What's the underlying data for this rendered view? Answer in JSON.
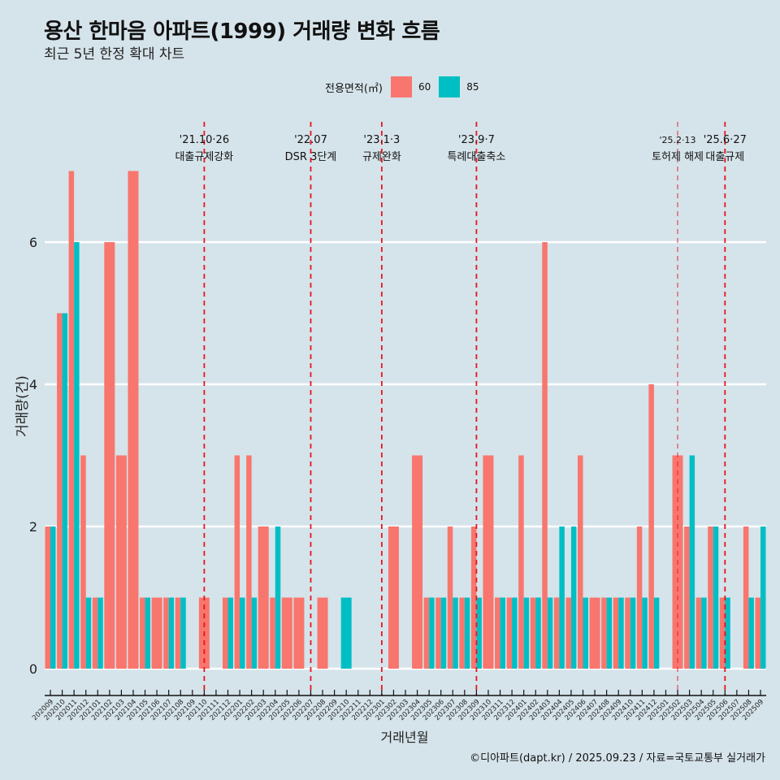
{
  "chart_data": {
    "type": "bar",
    "title": "용산 한마음 아파트(1999) 거래량 변화 흐름",
    "subtitle": "최근 5년 한정 확대 차트",
    "xlabel": "거래년월",
    "ylabel": "거래량(건)",
    "ylim": [
      0,
      7
    ],
    "yticks": [
      0,
      2,
      4,
      6
    ],
    "grid": "horizontal",
    "legend": {
      "title": "전용면적(㎡)",
      "position": "top",
      "entries": [
        {
          "name": "60",
          "color": "#f8766d"
        },
        {
          "name": "85",
          "color": "#00bfc4"
        }
      ]
    },
    "categories": [
      "202009",
      "202010",
      "202011",
      "202012",
      "202101",
      "202102",
      "202103",
      "202104",
      "202105",
      "202106",
      "202107",
      "202108",
      "202109",
      "202110",
      "202111",
      "202112",
      "202201",
      "202202",
      "202203",
      "202204",
      "202205",
      "202206",
      "202207",
      "202208",
      "202209",
      "202210",
      "202211",
      "202212",
      "202301",
      "202302",
      "202303",
      "202304",
      "202305",
      "202306",
      "202307",
      "202308",
      "202309",
      "202310",
      "202311",
      "202312",
      "202401",
      "202402",
      "202403",
      "202404",
      "202405",
      "202406",
      "202407",
      "202408",
      "202409",
      "202410",
      "202411",
      "202412",
      "202501",
      "202502",
      "202503",
      "202504",
      "202505",
      "202506",
      "202507",
      "202508",
      "202509"
    ],
    "series": [
      {
        "name": "60",
        "color": "#f8766d",
        "values": [
          2,
          5,
          7,
          3,
          1,
          6,
          3,
          7,
          1,
          1,
          1,
          1,
          0,
          1,
          0,
          1,
          3,
          3,
          2,
          1,
          1,
          1,
          0,
          1,
          0,
          0,
          0,
          0,
          0,
          2,
          0,
          3,
          1,
          1,
          2,
          1,
          2,
          3,
          1,
          1,
          3,
          1,
          6,
          1,
          1,
          3,
          1,
          1,
          1,
          1,
          2,
          4,
          0,
          3,
          2,
          1,
          2,
          1,
          0,
          2,
          1
        ]
      },
      {
        "name": "85",
        "color": "#00bfc4",
        "values": [
          2,
          5,
          6,
          1,
          1,
          0,
          0,
          0,
          1,
          0,
          1,
          1,
          0,
          0,
          0,
          1,
          1,
          1,
          0,
          2,
          0,
          0,
          0,
          0,
          0,
          1,
          0,
          0,
          0,
          0,
          0,
          0,
          1,
          1,
          1,
          1,
          1,
          0,
          1,
          1,
          1,
          1,
          1,
          2,
          2,
          1,
          0,
          1,
          1,
          1,
          1,
          1,
          0,
          0,
          3,
          1,
          2,
          1,
          0,
          1,
          2
        ]
      }
    ],
    "annotations": [
      {
        "at": "202110",
        "date": "'21.10·26",
        "label": "대출규제강화"
      },
      {
        "at": "202207",
        "date": "'22.07",
        "label": "DSR 3단계"
      },
      {
        "at": "202301",
        "date": "'23.1·3",
        "label": "규제완화"
      },
      {
        "at": "202309",
        "date": "'23.9·7",
        "label": "특례대출축소"
      },
      {
        "at": "202502",
        "date": "'25.2·13",
        "label": "토허제 해제",
        "style": "thin"
      },
      {
        "at": "202506",
        "date": "'25.6·27",
        "label": "대출규제"
      }
    ],
    "annotation_color": "#e8141e"
  },
  "caption": "©디아파트(dapt.kr) / 2025.09.23 / 자료=국토교통부 실거래가"
}
